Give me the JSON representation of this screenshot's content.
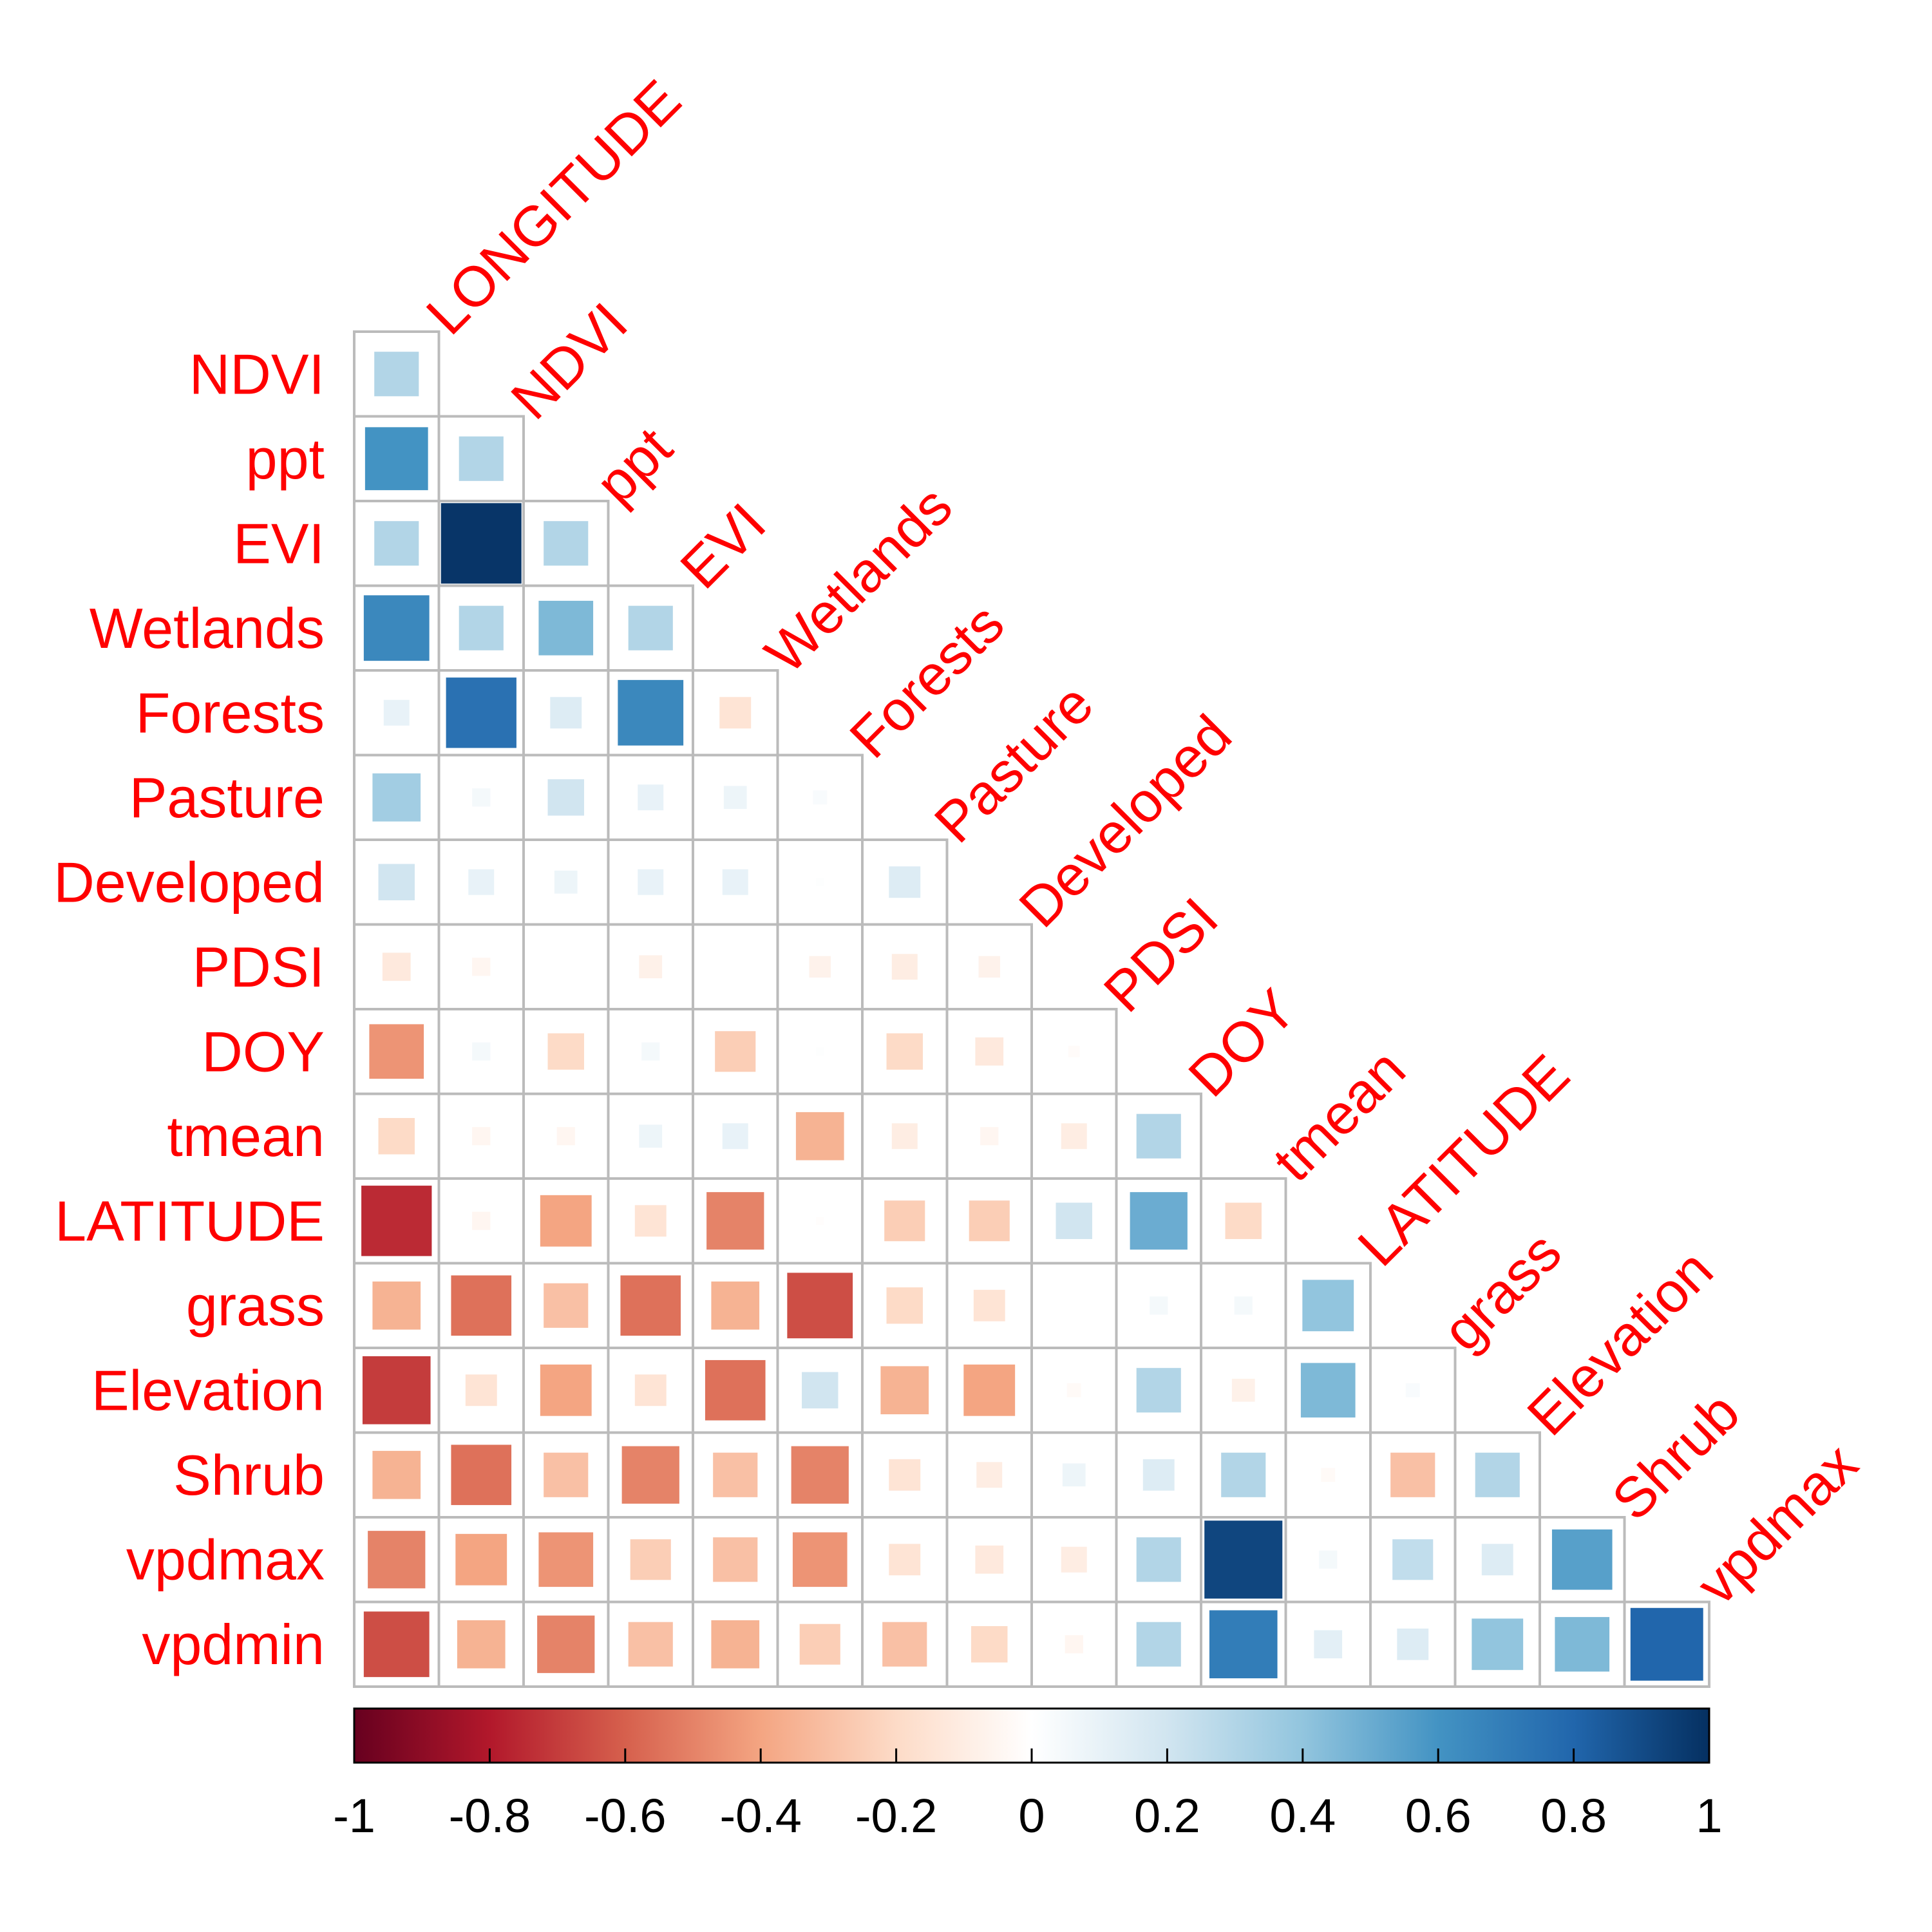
{
  "chart_data": {
    "type": "heatmap",
    "title": "",
    "variables": [
      "LONGITUDE",
      "NDVI",
      "ppt",
      "EVI",
      "Wetlands",
      "Forests",
      "Pasture",
      "Developed",
      "PDSI",
      "DOY",
      "tmean",
      "LATITUDE",
      "grass",
      "Elevation",
      "Shrub",
      "vpdmax",
      "vpdmin"
    ],
    "row_labels": [
      "NDVI",
      "ppt",
      "EVI",
      "Wetlands",
      "Forests",
      "Pasture",
      "Developed",
      "PDSI",
      "DOY",
      "tmean",
      "LATITUDE",
      "grass",
      "Elevation",
      "Shrub",
      "vpdmax",
      "vpdmin"
    ],
    "col_labels": [
      "LONGITUDE",
      "NDVI",
      "ppt",
      "EVI",
      "Wetlands",
      "Forests",
      "Pasture",
      "Developed",
      "PDSI",
      "DOY",
      "tmean",
      "LATITUDE",
      "grass",
      "Elevation",
      "Shrub",
      "vpdmax"
    ],
    "matrix": [
      [
        0.3
      ],
      [
        0.6,
        0.3
      ],
      [
        0.3,
        0.98,
        0.3
      ],
      [
        0.65,
        0.3,
        0.45,
        0.3
      ],
      [
        0.1,
        0.75,
        0.15,
        0.65,
        -0.15
      ],
      [
        0.35,
        0.05,
        0.2,
        0.1,
        0.08,
        0.03
      ],
      [
        0.2,
        0.1,
        0.08,
        0.1,
        0.1,
        0.01,
        0.15
      ],
      [
        -0.12,
        -0.05,
        0.0,
        -0.08,
        0.0,
        -0.07,
        -0.1,
        -0.07
      ],
      [
        -0.45,
        0.05,
        -0.2,
        0.05,
        -0.25,
        0.01,
        -0.2,
        -0.12,
        -0.02
      ],
      [
        -0.2,
        -0.05,
        -0.05,
        0.08,
        0.1,
        -0.35,
        -0.1,
        -0.05,
        -0.1,
        0.3
      ],
      [
        -0.75,
        -0.05,
        -0.4,
        -0.15,
        -0.5,
        -0.01,
        -0.25,
        -0.25,
        0.2,
        0.5,
        -0.2
      ],
      [
        -0.35,
        -0.55,
        -0.3,
        -0.55,
        -0.35,
        -0.65,
        -0.2,
        -0.15,
        0.0,
        0.05,
        0.05,
        0.4
      ],
      [
        -0.7,
        -0.15,
        -0.4,
        -0.15,
        -0.55,
        0.2,
        -0.35,
        -0.4,
        -0.03,
        0.3,
        -0.08,
        0.45,
        0.03
      ],
      [
        -0.35,
        -0.55,
        -0.3,
        -0.5,
        -0.3,
        -0.5,
        -0.15,
        -0.1,
        0.08,
        0.15,
        0.3,
        -0.03,
        -0.3,
        0.3
      ],
      [
        -0.5,
        -0.4,
        -0.45,
        -0.25,
        -0.3,
        -0.45,
        -0.15,
        -0.12,
        -0.1,
        0.3,
        0.92,
        0.05,
        0.25,
        0.15,
        0.55
      ],
      [
        -0.65,
        -0.35,
        -0.5,
        -0.3,
        -0.35,
        -0.25,
        -0.3,
        -0.2,
        -0.05,
        0.3,
        0.7,
        0.12,
        0.15,
        0.4,
        0.45,
        0.8
      ]
    ],
    "color_scale": {
      "min": -1,
      "max": 1,
      "colors": [
        "#67001f",
        "#b2182b",
        "#d6604d",
        "#f4a582",
        "#fddbc7",
        "#ffffff",
        "#d1e5f0",
        "#92c5de",
        "#4393c3",
        "#2166ac",
        "#053061"
      ],
      "ticks": [
        "-1",
        "-0.8",
        "-0.6",
        "-0.4",
        "-0.2",
        "0",
        "0.2",
        "0.4",
        "0.6",
        "0.8",
        "1"
      ]
    },
    "label_color": "#ff0000",
    "grid_color": "#bbbbbb",
    "legend": "bottom"
  }
}
